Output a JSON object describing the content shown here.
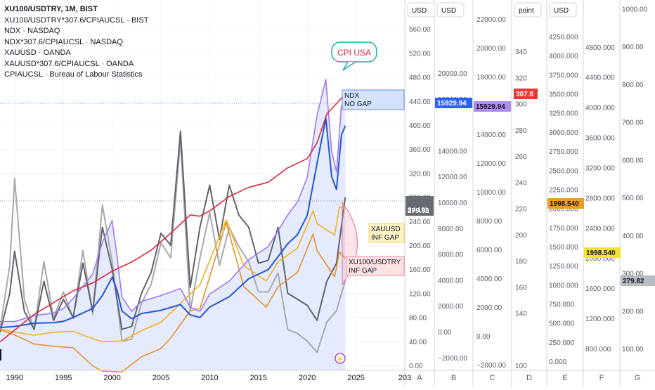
{
  "legend": {
    "title": "XU100/USDTRY, 1M, BIST",
    "items": [
      "XU100/USDTRY*307.6/CPIAUCSL · BIST",
      "NDX · NASDAQ",
      "NDX*307.6/CPIAUCSL · NASDAQ",
      "XAUUSD · OANDA",
      "XAUUSD*307.6/CPIAUCSL · OANDA",
      "CPIAUCSL · Bureau of Labour Statistics"
    ]
  },
  "colors": {
    "cpi": "#e0283a",
    "ndx": "#2255d6",
    "ndx_real": "#a276f0",
    "xau": "#f0b020",
    "xau_real": "#e6902a",
    "xu100": "#606469",
    "xu100_real": "#a6a9ae",
    "area": "#dfe6fb"
  },
  "annotations": {
    "cpi_callout": "CPI USA",
    "ndx_box": [
      "NDX",
      "NO GAP"
    ],
    "xau_box": [
      "XAUUSD",
      "INF GAP"
    ],
    "xu_box": [
      "XU100/USDTRY",
      "INF GAP"
    ]
  },
  "bottom_axis": {
    "years": [
      "1990",
      "1995",
      "2000",
      "2005",
      "2010",
      "2015",
      "2020",
      "2025",
      "203"
    ],
    "scale_letters": [
      "A",
      "B",
      "C",
      "D",
      "E",
      "F",
      "G"
    ]
  },
  "price_scales": {
    "A": {
      "header": "USD",
      "ticks": [
        "560.00",
        "520.00",
        "480.00",
        "440.00",
        "400.00",
        "360.00",
        "320.00",
        "280.00",
        "240.00",
        "200.00",
        "160.00",
        "120.00",
        "80.00",
        "40.00",
        "0.00"
      ],
      "label": "279.82",
      "label_sub": "8d 19h"
    },
    "B": {
      "header": "USD",
      "ticks": [
        "20000.00",
        "18000.00",
        "14000.00",
        "12000.00",
        "10000.00",
        "8000.00",
        "6000.00",
        "4000.00",
        "2000.00",
        "0.00",
        "−2000.00"
      ],
      "label": "15929.94"
    },
    "C": {
      "ticks": [
        "22000.00",
        "20000.00",
        "18000.00",
        "14000.00",
        "12000.00",
        "10000.00",
        "8000.00",
        "6000.00",
        "4000.00",
        "2000.00",
        "0.00",
        "−2000.00"
      ],
      "label": "15929.94"
    },
    "D": {
      "header": "point",
      "ticks": [
        "340",
        "320",
        "300",
        "280",
        "260",
        "240",
        "220",
        "200",
        "180",
        "160",
        "140",
        "100"
      ],
      "label": "307.6"
    },
    "E": {
      "header": "USD",
      "ticks": [
        "4250.000",
        "4000.000",
        "3750.000",
        "3500.000",
        "3250.000",
        "3000.000",
        "2750.000",
        "2500.000",
        "2250.000",
        "2000.000",
        "1750.000",
        "1500.000",
        "1250.000",
        "1000.000",
        "750.000",
        "500.000",
        "250.000",
        "0.000"
      ],
      "label": "1998.540"
    },
    "F": {
      "ticks": [
        "4800.000",
        "4400.000",
        "4000.000",
        "3600.000",
        "3200.000",
        "2800.000",
        "2400.000",
        "2000.000",
        "1600.000",
        "1200.000",
        "800.000"
      ],
      "label": "1998.540"
    },
    "G": {
      "ticks": [
        "1000.00",
        "900.00",
        "800.00",
        "700.00",
        "600.00",
        "500.00",
        "400.00",
        "300.00",
        "200.00",
        "100.00"
      ],
      "label": "279.82"
    }
  },
  "chart_data": {
    "type": "line",
    "title": "XU100/USDTRY, 1M, BIST",
    "x_unit": "year",
    "xlim": [
      1988.5,
      2030
    ],
    "series": [
      {
        "name": "CPIAUCSL · Bureau of Labour Statistics",
        "scale": "D",
        "x": [
          1988.5,
          1990,
          1992,
          1994,
          1996,
          1998,
          2000,
          2002,
          2004,
          2006,
          2008,
          2009,
          2010,
          2012,
          2014,
          2016,
          2018,
          2020,
          2021,
          2022,
          2023,
          2023.9
        ],
        "y": [
          118,
          127,
          139,
          148,
          157,
          163,
          172,
          179,
          188,
          201,
          215,
          214,
          218,
          229,
          236,
          240,
          251,
          258,
          270,
          292,
          300,
          307.6
        ]
      },
      {
        "name": "NDX · NASDAQ",
        "scale": "B",
        "x": [
          1988.5,
          1990,
          1992,
          1994,
          1995,
          1996,
          1998,
          1999,
          2000,
          2000.5,
          2001,
          2002,
          2003,
          2005,
          2007,
          2008,
          2009,
          2010,
          2012,
          2014,
          2016,
          2018,
          2019,
          2020,
          2021,
          2021.9,
          2022.5,
          2023,
          2023.5,
          2023.9
        ],
        "y": [
          320,
          400,
          650,
          700,
          800,
          1100,
          1800,
          2800,
          4200,
          3200,
          1600,
          1000,
          1400,
          1650,
          2100,
          1300,
          1100,
          1900,
          2700,
          4100,
          4800,
          6800,
          7500,
          9000,
          13000,
          16500,
          12000,
          11000,
          15200,
          15929.94
        ]
      },
      {
        "name": "NDX*307.6/CPIAUCSL · NASDAQ",
        "scale": "C",
        "x": [
          1988.5,
          1990,
          1992,
          1994,
          1995,
          1996,
          1998,
          1999,
          2000,
          2000.5,
          2001,
          2002,
          2003,
          2005,
          2007,
          2008,
          2009,
          2010,
          2012,
          2014,
          2016,
          2018,
          2019,
          2020,
          2021,
          2021.9,
          2022.5,
          2023,
          2023.5,
          2023.9
        ],
        "y": [
          1000,
          1000,
          1400,
          1600,
          1900,
          2600,
          4300,
          6500,
          8000,
          5500,
          2700,
          1700,
          2400,
          2800,
          3300,
          2000,
          1700,
          2900,
          3800,
          5300,
          6200,
          8400,
          9300,
          11000,
          15300,
          17800,
          12800,
          11400,
          16000,
          15929.94
        ]
      },
      {
        "name": "XAUUSD · OANDA",
        "scale": "E",
        "x": [
          1988.5,
          1990,
          1992,
          1994,
          1996,
          1998,
          1999,
          2001,
          2003,
          2005,
          2006,
          2008,
          2009,
          2011.7,
          2013.5,
          2015.8,
          2017,
          2019,
          2020.6,
          2021,
          2022.8,
          2023.3,
          2023.9
        ],
        "y": [
          420,
          380,
          340,
          380,
          390,
          295,
          255,
          265,
          400,
          510,
          630,
          880,
          1000,
          1850,
          1250,
          1050,
          1300,
          1480,
          1970,
          1800,
          1650,
          2020,
          1998.54
        ]
      },
      {
        "name": "XAUUSD*307.6/CPIAUCSL · OANDA",
        "scale": "F",
        "x": [
          1988.5,
          1990,
          1992,
          1994,
          1996,
          1998,
          1999,
          2001,
          2003,
          2005,
          2006,
          2008,
          2009,
          2011.7,
          2013.5,
          2015.8,
          2017,
          2019,
          2020.6,
          2021,
          2022.8,
          2023.3,
          2023.9
        ],
        "y": [
          1050,
          980,
          860,
          830,
          810,
          570,
          500,
          490,
          690,
          800,
          940,
          1300,
          1330,
          2470,
          1620,
          1350,
          1620,
          1810,
          2320,
          2100,
          1750,
          2080,
          1998.54
        ]
      },
      {
        "name": "XU100/USDTRY, 1M, BIST",
        "scale": "A",
        "x": [
          1988.5,
          1989.5,
          1990,
          1991,
          1992,
          1993,
          1994,
          1995,
          1996,
          1997,
          1998,
          1999,
          2000,
          2001,
          2002,
          2003,
          2004,
          2005,
          2006,
          2007,
          2008,
          2009,
          2010,
          2011,
          2012,
          2013,
          2014,
          2015,
          2016,
          2017,
          2018,
          2019,
          2020,
          2021,
          2022,
          2023,
          2023.9
        ],
        "y": [
          55,
          120,
          190,
          90,
          60,
          140,
          75,
          110,
          80,
          170,
          90,
          230,
          160,
          60,
          65,
          120,
          155,
          220,
          200,
          390,
          130,
          230,
          300,
          210,
          300,
          250,
          230,
          170,
          175,
          230,
          120,
          110,
          100,
          75,
          140,
          170,
          279.82
        ]
      },
      {
        "name": "XU100/USDTRY*307.6/CPIAUCSL · BIST",
        "scale": "G",
        "x": [
          1988.5,
          1989.5,
          1990,
          1991,
          1992,
          1993,
          1994,
          1995,
          1996,
          1997,
          1998,
          1999,
          2000,
          2001,
          2002,
          2003,
          2004,
          2005,
          2006,
          2007,
          2008,
          2009,
          2010,
          2011,
          2012,
          2013,
          2014,
          2015,
          2016,
          2017,
          2018,
          2019,
          2020,
          2021,
          2022,
          2023,
          2023.9
        ],
        "y": [
          150,
          320,
          550,
          230,
          150,
          330,
          180,
          250,
          180,
          360,
          190,
          480,
          330,
          120,
          125,
          220,
          270,
          380,
          340,
          650,
          200,
          340,
          460,
          320,
          420,
          370,
          330,
          250,
          250,
          300,
          150,
          140,
          120,
          90,
          170,
          200,
          279.82
        ]
      }
    ]
  }
}
